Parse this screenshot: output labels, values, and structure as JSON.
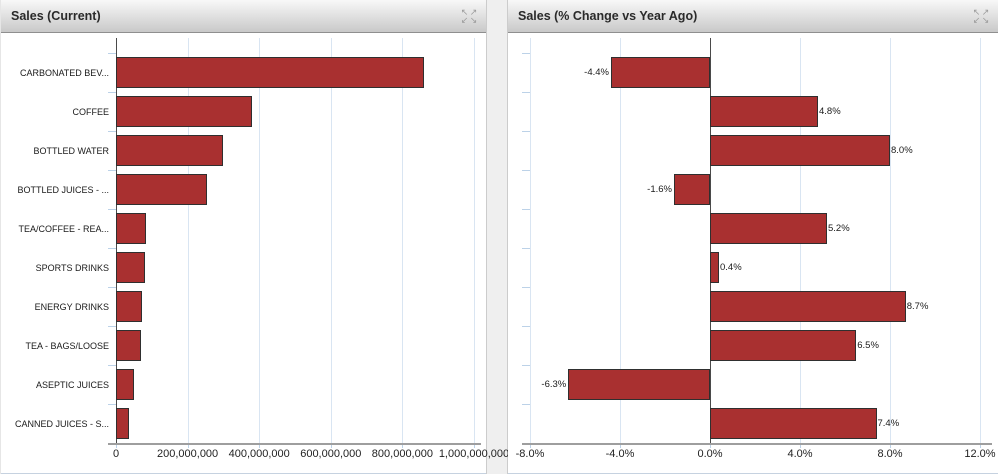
{
  "colors": {
    "bar_fill": "#A93030",
    "bar_border": "#2F2F2F",
    "gridline": "#D9E5F2",
    "row_tick": "#BCD2E8",
    "axis_line": "#9E9E9E",
    "zero_line": "#4A4A4A"
  },
  "panels": [
    {
      "title": "Sales (Current)",
      "expand_icon": "expand-icon"
    },
    {
      "title": "Sales (% Change vs Year Ago)",
      "expand_icon": "expand-icon"
    }
  ],
  "chart_data": [
    {
      "type": "bar",
      "orientation": "horizontal",
      "title": "Sales (Current)",
      "categories": [
        "CARBONATED BEV...",
        "COFFEE",
        "BOTTLED WATER",
        "BOTTLED JUICES - ...",
        "TEA/COFFEE - REA...",
        "SPORTS DRINKS",
        "ENERGY DRINKS",
        "TEA - BAGS/LOOSE",
        "ASEPTIC JUICES",
        "CANNED JUICES - S..."
      ],
      "values": [
        860000000,
        380000000,
        298000000,
        255000000,
        83000000,
        80000000,
        73000000,
        70000000,
        50000000,
        37000000
      ],
      "xlim": [
        0,
        1000000000
      ],
      "xticks": {
        "values": [
          0,
          200000000,
          400000000,
          600000000,
          800000000,
          1000000000
        ],
        "labels": [
          "0",
          "200,000,000",
          "400,000,000",
          "600,000,000",
          "800,000,000",
          "1,000,000,000"
        ]
      },
      "show_category_labels": true,
      "value_labels": null,
      "grid": true,
      "legend": false
    },
    {
      "type": "bar",
      "orientation": "horizontal",
      "title": "Sales (% Change vs Year Ago)",
      "categories": [
        "CARBONATED BEV...",
        "COFFEE",
        "BOTTLED WATER",
        "BOTTLED JUICES - ...",
        "TEA/COFFEE - REA...",
        "SPORTS DRINKS",
        "ENERGY DRINKS",
        "TEA - BAGS/LOOSE",
        "ASEPTIC JUICES",
        "CANNED JUICES - S..."
      ],
      "values": [
        -4.4,
        4.8,
        8.0,
        -1.6,
        5.2,
        0.4,
        8.7,
        6.5,
        -6.3,
        7.4
      ],
      "value_labels": [
        "-4.4%",
        "4.8%",
        "8.0%",
        "-1.6%",
        "5.2%",
        "0.4%",
        "8.7%",
        "6.5%",
        "-6.3%",
        "7.4%"
      ],
      "xlim": [
        -8,
        12
      ],
      "xticks": {
        "values": [
          -8,
          -4,
          0,
          4,
          8,
          12
        ],
        "labels": [
          "-8.0%",
          "-4.0%",
          "0.0%",
          "4.0%",
          "8.0%",
          "12.0%"
        ]
      },
      "show_category_labels": false,
      "grid": true,
      "legend": false
    }
  ]
}
